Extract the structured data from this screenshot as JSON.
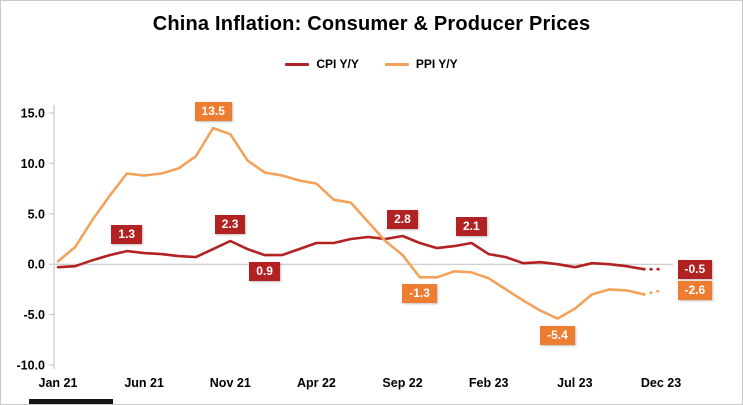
{
  "window": {
    "background": "#ffffff",
    "border_color": "#c9c9c9"
  },
  "chart_data": {
    "type": "line",
    "title": "China Inflation: Consumer & Producer Prices",
    "legend_position": "top",
    "grid": "zero-line-only",
    "x_tick_labels": [
      "Jan 21",
      "Jun 21",
      "Nov 21",
      "Apr 22",
      "Sep 22",
      "Feb 23",
      "Jul 23",
      "Dec 23"
    ],
    "x_tick_indices": [
      0,
      5,
      10,
      15,
      20,
      25,
      30,
      35
    ],
    "y_ticks": [
      "15.0",
      "10.0",
      "5.0",
      "0.0",
      "-5.0",
      "-10.0"
    ],
    "y_tick_values": [
      15,
      10,
      5,
      0,
      -5,
      -10
    ],
    "ylim": [
      -10,
      15
    ],
    "dotted_tail_segments": 1,
    "series": [
      {
        "name": "CPI Y/Y",
        "line_color": "#b22222",
        "label_color": "#b22222",
        "values": [
          -0.3,
          -0.2,
          0.4,
          0.9,
          1.3,
          1.1,
          1.0,
          0.8,
          0.7,
          1.5,
          2.3,
          1.5,
          0.9,
          0.9,
          1.5,
          2.1,
          2.1,
          2.5,
          2.7,
          2.5,
          2.8,
          2.1,
          1.6,
          1.8,
          2.1,
          1.0,
          0.7,
          0.1,
          0.2,
          0.0,
          -0.3,
          0.1,
          0.0,
          -0.2,
          -0.5,
          -0.5
        ]
      },
      {
        "name": "PPI Y/Y",
        "line_color": "#f3a25c",
        "label_color": "#ed7d31",
        "values": [
          0.3,
          1.7,
          4.4,
          6.8,
          9.0,
          8.8,
          9.0,
          9.5,
          10.7,
          13.5,
          12.9,
          10.3,
          9.1,
          8.8,
          8.3,
          8.0,
          6.4,
          6.1,
          4.2,
          2.3,
          0.9,
          -1.3,
          -1.3,
          -0.7,
          -0.8,
          -1.4,
          -2.5,
          -3.6,
          -4.6,
          -5.4,
          -4.4,
          -3.0,
          -2.5,
          -2.6,
          -3.0,
          -2.6
        ]
      }
    ],
    "annotations": [
      {
        "series": 0,
        "index": 4,
        "text": "1.3",
        "placement": "above"
      },
      {
        "series": 0,
        "index": 10,
        "text": "2.3",
        "placement": "above"
      },
      {
        "series": 0,
        "index": 12,
        "text": "0.9",
        "placement": "below"
      },
      {
        "series": 0,
        "index": 20,
        "text": "2.8",
        "placement": "above"
      },
      {
        "series": 0,
        "index": 24,
        "text": "2.1",
        "placement": "above"
      },
      {
        "series": 1,
        "index": 9,
        "text": "13.5",
        "placement": "above"
      },
      {
        "series": 1,
        "index": 21,
        "text": "-1.3",
        "placement": "below"
      },
      {
        "series": 1,
        "index": 29,
        "text": "-5.4",
        "placement": "below"
      }
    ],
    "end_labels": [
      {
        "series": 0,
        "text": "-0.5"
      },
      {
        "series": 1,
        "text": "-2.6"
      }
    ]
  }
}
